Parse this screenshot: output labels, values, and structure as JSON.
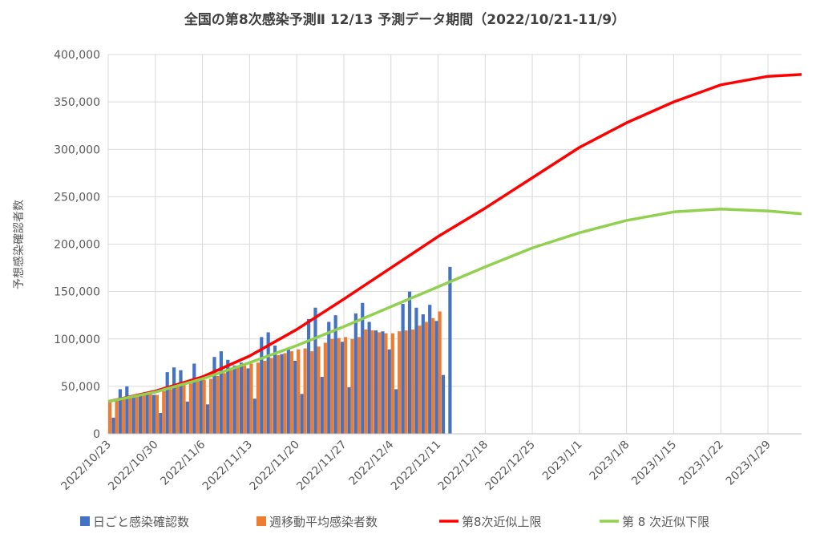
{
  "chart_data": {
    "type": "bar-line",
    "title": "全国の第8次感染予測Ⅱ  12/13  予測データ期間（2022/10/21-11/9）",
    "y_label": "予想感染確認者数",
    "xlim": [
      "2022/10/23",
      "2023/2/3"
    ],
    "xticks": [
      "2022/10/23",
      "2022/10/30",
      "2022/11/6",
      "2022/11/13",
      "2022/11/20",
      "2022/11/27",
      "2022/12/4",
      "2022/12/11",
      "2022/12/18",
      "2022/12/25",
      "2023/1/1",
      "2023/1/8",
      "2023/1/15",
      "2023/1/22",
      "2023/1/29"
    ],
    "ylim": [
      0,
      400000
    ],
    "yticks": [
      0,
      {
        "value": 50000,
        "label": "50,000"
      },
      {
        "value": 100000,
        "label": "100,000"
      },
      {
        "value": 150000,
        "label": "150,000"
      },
      {
        "value": 200000,
        "label": "200,000"
      },
      {
        "value": 250000,
        "label": "250,000"
      },
      {
        "value": 300000,
        "label": "300,000"
      },
      {
        "value": 350000,
        "label": "350,000"
      },
      {
        "value": 400000,
        "label": "400,000"
      }
    ],
    "grid": true,
    "legend": "bottom",
    "daily_x": [
      "2022/10/23",
      "2022/10/24",
      "2022/10/25",
      "2022/10/26",
      "2022/10/27",
      "2022/10/28",
      "2022/10/29",
      "2022/10/30",
      "2022/10/31",
      "2022/11/1",
      "2022/11/2",
      "2022/11/3",
      "2022/11/4",
      "2022/11/5",
      "2022/11/6",
      "2022/11/7",
      "2022/11/8",
      "2022/11/9",
      "2022/11/10",
      "2022/11/11",
      "2022/11/12",
      "2022/11/13",
      "2022/11/14",
      "2022/11/15",
      "2022/11/16",
      "2022/11/17",
      "2022/11/18",
      "2022/11/19",
      "2022/11/20",
      "2022/11/21",
      "2022/11/22",
      "2022/11/23",
      "2022/11/24",
      "2022/11/25",
      "2022/11/26",
      "2022/11/27",
      "2022/11/28",
      "2022/11/29",
      "2022/11/30",
      "2022/12/1",
      "2022/12/2",
      "2022/12/3",
      "2022/12/4",
      "2022/12/5",
      "2022/12/6",
      "2022/12/7",
      "2022/12/8",
      "2022/12/9",
      "2022/12/10",
      "2022/12/11",
      "2022/12/12",
      "2022/12/13"
    ],
    "weekly_x": [
      "2022/10/23",
      "2022/10/30",
      "2022/11/6",
      "2022/11/13",
      "2022/11/20",
      "2022/11/27",
      "2022/12/4",
      "2022/12/11",
      "2022/12/18",
      "2022/12/25",
      "2023/1/1",
      "2023/1/8",
      "2023/1/15",
      "2023/1/22",
      "2023/1/29",
      "2023/2/3"
    ],
    "series": [
      {
        "name": "日ごと感染確認数",
        "kind": "bar",
        "color": "#4472c4",
        "values": [
          31000,
          17000,
          47000,
          50000,
          38000,
          40000,
          42000,
          41000,
          22000,
          65000,
          70000,
          67000,
          34000,
          74000,
          60000,
          31000,
          81000,
          87000,
          78000,
          72000,
          75000,
          69000,
          37000,
          102000,
          107000,
          93000,
          84000,
          89000,
          77000,
          42000,
          121000,
          133000,
          60000,
          118000,
          125000,
          97000,
          49000,
          127000,
          138000,
          118000,
          109000,
          108000,
          89000,
          47000,
          137000,
          150000,
          133000,
          126000,
          136000,
          119000,
          62000,
          176000
        ]
      },
      {
        "name": "週移動平均感染者数",
        "kind": "bar",
        "color": "#ed7d31",
        "values": [
          33000,
          35000,
          37000,
          38000,
          40000,
          41000,
          42000,
          41000,
          45000,
          47000,
          50000,
          52000,
          53000,
          56000,
          57000,
          58000,
          61000,
          64000,
          67000,
          70000,
          72000,
          74000,
          75000,
          77000,
          80000,
          83000,
          85000,
          87000,
          89000,
          90000,
          87000,
          92000,
          96000,
          100000,
          101000,
          102000,
          100000,
          102000,
          110000,
          109000,
          107000,
          106000,
          106000,
          108000,
          109000,
          110000,
          114000,
          118000,
          122000,
          129000,
          null,
          null
        ]
      },
      {
        "name": "第8次近似上限",
        "kind": "line",
        "color": "#ff0000",
        "values": [
          34000,
          45000,
          60000,
          82000,
          110000,
          142000,
          175000,
          208000,
          238000,
          270000,
          302000,
          328000,
          350000,
          368000,
          377000,
          379000
        ]
      },
      {
        "name": "第 8 次近似下限",
        "kind": "line",
        "color": "#92d050",
        "values": [
          34000,
          44000,
          58000,
          75000,
          93000,
          113000,
          134000,
          155000,
          176000,
          196000,
          212000,
          225000,
          234000,
          237000,
          235000,
          232000
        ]
      }
    ]
  }
}
